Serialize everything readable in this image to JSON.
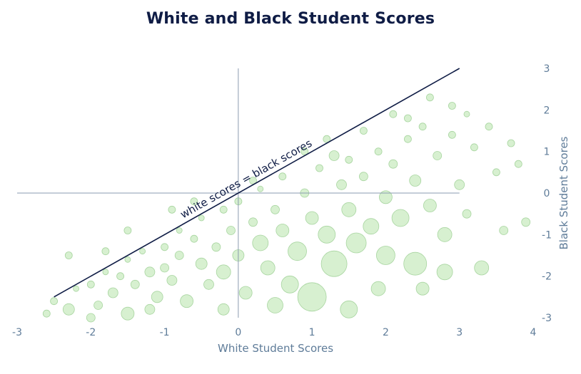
{
  "chart_data": {
    "type": "scatter",
    "title": "White and Black Student Scores",
    "xlabel": "White Student Scores",
    "ylabel": "Black Student Scores",
    "xlim": [
      -3,
      4
    ],
    "ylim": [
      -3,
      3
    ],
    "x_ticks": [
      "-3",
      "-2",
      "-1",
      "0",
      "1",
      "2",
      "3",
      "4"
    ],
    "y_ticks": [
      "3",
      "2",
      "1",
      "0",
      "-1",
      "-2",
      "-3"
    ],
    "y_axis_side": "right",
    "reference_line": {
      "label": "white scores = black scores",
      "from": [
        -2.5,
        -2.5
      ],
      "to": [
        3,
        3
      ],
      "color": "#0f1c45"
    },
    "marker_color": "#c9ebc0",
    "marker_edge_color": "#a8d5a0",
    "points": [
      {
        "x": -2.5,
        "y": -2.6,
        "r": 5
      },
      {
        "x": -2.2,
        "y": -2.3,
        "r": 4
      },
      {
        "x": -2.3,
        "y": -2.8,
        "r": 8
      },
      {
        "x": -2.0,
        "y": -2.2,
        "r": 5
      },
      {
        "x": -1.9,
        "y": -2.7,
        "r": 6
      },
      {
        "x": -1.8,
        "y": -1.9,
        "r": 4
      },
      {
        "x": -1.7,
        "y": -2.4,
        "r": 7
      },
      {
        "x": -1.6,
        "y": -2.0,
        "r": 5
      },
      {
        "x": -1.5,
        "y": -1.6,
        "r": 4
      },
      {
        "x": -1.5,
        "y": -2.9,
        "r": 9
      },
      {
        "x": -1.4,
        "y": -2.2,
        "r": 6
      },
      {
        "x": -1.3,
        "y": -1.4,
        "r": 4
      },
      {
        "x": -1.2,
        "y": -1.9,
        "r": 7
      },
      {
        "x": -1.1,
        "y": -2.5,
        "r": 8
      },
      {
        "x": -1.0,
        "y": -1.3,
        "r": 5
      },
      {
        "x": -1.0,
        "y": -1.8,
        "r": 6
      },
      {
        "x": -0.9,
        "y": -2.1,
        "r": 7
      },
      {
        "x": -0.8,
        "y": -0.9,
        "r": 4
      },
      {
        "x": -0.8,
        "y": -1.5,
        "r": 6
      },
      {
        "x": -0.7,
        "y": -2.6,
        "r": 9
      },
      {
        "x": -0.6,
        "y": -1.1,
        "r": 5
      },
      {
        "x": -0.5,
        "y": -1.7,
        "r": 8
      },
      {
        "x": -0.5,
        "y": -0.6,
        "r": 4
      },
      {
        "x": -0.4,
        "y": -2.2,
        "r": 7
      },
      {
        "x": -0.3,
        "y": -1.3,
        "r": 6
      },
      {
        "x": -0.2,
        "y": -0.4,
        "r": 5
      },
      {
        "x": -0.2,
        "y": -1.9,
        "r": 10
      },
      {
        "x": -0.1,
        "y": -0.9,
        "r": 6
      },
      {
        "x": 0.0,
        "y": -1.5,
        "r": 8
      },
      {
        "x": 0.0,
        "y": -0.2,
        "r": 5
      },
      {
        "x": 0.1,
        "y": -2.4,
        "r": 9
      },
      {
        "x": 0.2,
        "y": -0.7,
        "r": 6
      },
      {
        "x": 0.3,
        "y": -1.2,
        "r": 11
      },
      {
        "x": 0.3,
        "y": 0.1,
        "r": 4
      },
      {
        "x": 0.4,
        "y": -1.8,
        "r": 10
      },
      {
        "x": 0.5,
        "y": -0.4,
        "r": 6
      },
      {
        "x": 0.6,
        "y": -0.9,
        "r": 9
      },
      {
        "x": 0.6,
        "y": 0.4,
        "r": 5
      },
      {
        "x": 0.7,
        "y": -2.2,
        "r": 12
      },
      {
        "x": 0.8,
        "y": -1.4,
        "r": 13
      },
      {
        "x": 0.9,
        "y": 0.0,
        "r": 6
      },
      {
        "x": 1.0,
        "y": -0.6,
        "r": 9
      },
      {
        "x": 1.0,
        "y": -2.5,
        "r": 20
      },
      {
        "x": 1.1,
        "y": 0.6,
        "r": 5
      },
      {
        "x": 1.2,
        "y": -1.0,
        "r": 12
      },
      {
        "x": 1.3,
        "y": -1.7,
        "r": 18
      },
      {
        "x": 1.4,
        "y": 0.2,
        "r": 7
      },
      {
        "x": 1.5,
        "y": -0.4,
        "r": 10
      },
      {
        "x": 1.5,
        "y": 0.8,
        "r": 5
      },
      {
        "x": 1.6,
        "y": -1.2,
        "r": 14
      },
      {
        "x": 1.7,
        "y": 0.4,
        "r": 6
      },
      {
        "x": 1.8,
        "y": -0.8,
        "r": 11
      },
      {
        "x": 1.9,
        "y": 1.0,
        "r": 5
      },
      {
        "x": 2.0,
        "y": -0.1,
        "r": 9
      },
      {
        "x": 2.0,
        "y": -1.5,
        "r": 13
      },
      {
        "x": 2.1,
        "y": 0.7,
        "r": 6
      },
      {
        "x": 2.2,
        "y": -0.6,
        "r": 12
      },
      {
        "x": 2.3,
        "y": 1.3,
        "r": 5
      },
      {
        "x": 2.4,
        "y": 0.3,
        "r": 8
      },
      {
        "x": 2.4,
        "y": -1.7,
        "r": 16
      },
      {
        "x": 2.5,
        "y": 1.6,
        "r": 5
      },
      {
        "x": 2.6,
        "y": -0.3,
        "r": 9
      },
      {
        "x": 2.7,
        "y": 0.9,
        "r": 6
      },
      {
        "x": 2.8,
        "y": -1.0,
        "r": 10
      },
      {
        "x": 2.9,
        "y": 1.4,
        "r": 5
      },
      {
        "x": 3.0,
        "y": 0.2,
        "r": 7
      },
      {
        "x": 3.1,
        "y": -0.5,
        "r": 6
      },
      {
        "x": 3.2,
        "y": 1.1,
        "r": 5
      },
      {
        "x": 3.3,
        "y": -1.8,
        "r": 10
      },
      {
        "x": 3.5,
        "y": 0.5,
        "r": 5
      },
      {
        "x": 3.6,
        "y": -0.9,
        "r": 6
      },
      {
        "x": 3.8,
        "y": 0.7,
        "r": 5
      },
      {
        "x": 3.9,
        "y": -0.7,
        "r": 6
      },
      {
        "x": 2.6,
        "y": 2.3,
        "r": 5
      },
      {
        "x": 2.9,
        "y": 2.1,
        "r": 5
      },
      {
        "x": 2.3,
        "y": 1.8,
        "r": 5
      },
      {
        "x": 3.1,
        "y": 1.9,
        "r": 4
      },
      {
        "x": -2.6,
        "y": -2.9,
        "r": 5
      },
      {
        "x": 1.2,
        "y": 1.3,
        "r": 5
      },
      {
        "x": 0.9,
        "y": 1.0,
        "r": 5
      },
      {
        "x": 1.7,
        "y": 1.5,
        "r": 5
      },
      {
        "x": -1.8,
        "y": -1.4,
        "r": 5
      },
      {
        "x": -2.3,
        "y": -1.5,
        "r": 5
      },
      {
        "x": 2.8,
        "y": -1.9,
        "r": 11
      },
      {
        "x": 1.5,
        "y": -2.8,
        "r": 12
      },
      {
        "x": 1.9,
        "y": -2.3,
        "r": 10
      },
      {
        "x": 0.5,
        "y": -2.7,
        "r": 11
      },
      {
        "x": -0.2,
        "y": -2.8,
        "r": 8
      },
      {
        "x": -1.2,
        "y": -2.8,
        "r": 7
      },
      {
        "x": -2.0,
        "y": -3.0,
        "r": 6
      },
      {
        "x": 0.2,
        "y": 0.3,
        "r": 5
      },
      {
        "x": -0.6,
        "y": -0.2,
        "r": 5
      },
      {
        "x": 3.4,
        "y": 1.6,
        "r": 5
      },
      {
        "x": 3.7,
        "y": 1.2,
        "r": 5
      },
      {
        "x": 2.1,
        "y": 1.9,
        "r": 5
      },
      {
        "x": 1.3,
        "y": 0.9,
        "r": 7
      },
      {
        "x": 2.5,
        "y": -2.3,
        "r": 9
      },
      {
        "x": -1.5,
        "y": -0.9,
        "r": 5
      },
      {
        "x": -0.9,
        "y": -0.4,
        "r": 5
      }
    ]
  }
}
